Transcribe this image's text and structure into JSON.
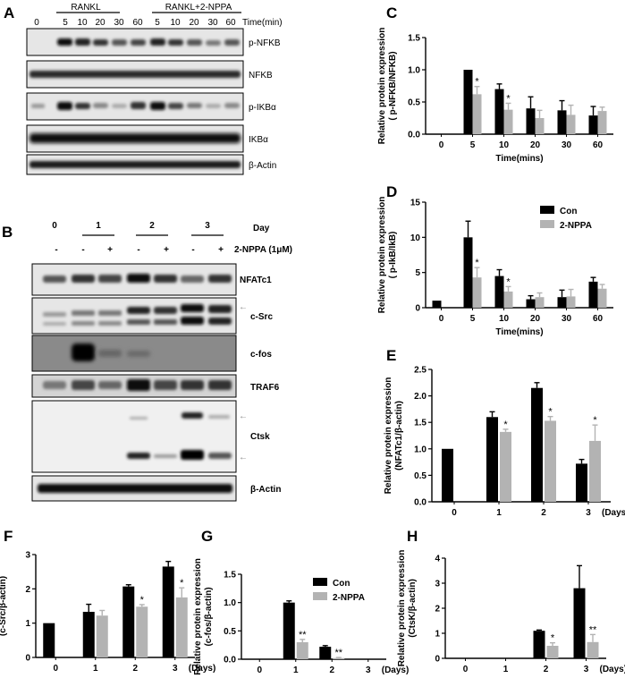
{
  "panel_letters": [
    "A",
    "B",
    "C",
    "D",
    "E",
    "F",
    "G",
    "H"
  ],
  "blot_a": {
    "groups": [
      "RANKL",
      "RANKL+2-NPPA"
    ],
    "time_labels": [
      "0",
      "5",
      "10",
      "20",
      "30",
      "60",
      "5",
      "10",
      "20",
      "30",
      "60"
    ],
    "time_unit": "Time(min)",
    "proteins": [
      "p-NFKB",
      "NFKB",
      "p-IKBα",
      "IKBα",
      "β-Actin"
    ]
  },
  "blot_b": {
    "day_label": "Day",
    "days": [
      "0",
      "1",
      "2",
      "3"
    ],
    "treatment": [
      "-",
      "-",
      "+",
      "-",
      "+",
      "-",
      "+"
    ],
    "treatment_label": "2-NPPA (1μM)",
    "proteins": [
      "NFATc1",
      "c-Src",
      "c-fos",
      "TRAF6",
      "Ctsk",
      "β-Actin"
    ]
  },
  "colors": {
    "con": "#000000",
    "npp": "#b3b3b3",
    "blot_bg": "#e8e8e8"
  },
  "chart_data": [
    {
      "id": "C",
      "type": "bar",
      "categories": [
        "0",
        "5",
        "10",
        "20",
        "30",
        "60"
      ],
      "series": [
        {
          "values": [
            0,
            1.0,
            0.7,
            0.4,
            0.37,
            0.29
          ],
          "errors": [
            0,
            0,
            0.08,
            0.18,
            0.15,
            0.14
          ]
        },
        {
          "values": [
            0,
            0.62,
            0.38,
            0.25,
            0.3,
            0.36
          ],
          "errors": [
            0,
            0.12,
            0.1,
            0.12,
            0.15,
            0.06
          ]
        }
      ],
      "sig": [
        "",
        "*",
        "*",
        "",
        "",
        ""
      ],
      "ylabel": "Relative protein expression\n( p-NFKB/NFKB)",
      "xlabel": "Time(mins)",
      "ylim": [
        0,
        1.5
      ],
      "yticks": [
        "0.0",
        "0.5",
        "1.0",
        "1.5"
      ]
    },
    {
      "id": "D",
      "type": "bar",
      "categories": [
        "0",
        "5",
        "10",
        "20",
        "30",
        "60"
      ],
      "series": [
        {
          "name": "Con",
          "values": [
            1.0,
            10.0,
            4.5,
            1.2,
            1.5,
            3.7
          ],
          "errors": [
            0,
            2.3,
            0.9,
            0.5,
            1.0,
            0.6
          ]
        },
        {
          "name": "2-NPPA",
          "values": [
            0,
            4.3,
            2.3,
            1.5,
            1.6,
            2.7
          ],
          "errors": [
            0,
            1.4,
            0.7,
            0.6,
            1.0,
            0.6
          ]
        }
      ],
      "sig": [
        "",
        "*",
        "*",
        "",
        "",
        ""
      ],
      "ylabel": "Relative protein expression\n( p-IkB/IkB)",
      "xlabel": "Time(mins)",
      "ylim": [
        0,
        15
      ],
      "yticks": [
        "0",
        "5",
        "10",
        "15"
      ],
      "legend": "top-right"
    },
    {
      "id": "E",
      "type": "bar",
      "categories": [
        "0",
        "1",
        "2",
        "3"
      ],
      "series": [
        {
          "values": [
            1.0,
            1.6,
            2.15,
            0.72
          ],
          "errors": [
            0,
            0.1,
            0.1,
            0.08
          ]
        },
        {
          "values": [
            null,
            1.32,
            1.53,
            1.15
          ],
          "errors": [
            0,
            0.05,
            0.08,
            0.3
          ]
        }
      ],
      "sig": [
        "",
        "*",
        "*",
        "*"
      ],
      "ylabel": "Relative protein expression\n(NFATc1/β-actin)",
      "xunit": "(Days)",
      "ylim": [
        0,
        2.5
      ],
      "yticks": [
        "0.0",
        "0.5",
        "1.0",
        "1.5",
        "2.0",
        "2.5"
      ]
    },
    {
      "id": "F",
      "type": "bar",
      "categories": [
        "0",
        "1",
        "2",
        "3"
      ],
      "series": [
        {
          "values": [
            1.0,
            1.33,
            2.07,
            2.65
          ],
          "errors": [
            0,
            0.22,
            0.05,
            0.15
          ]
        },
        {
          "values": [
            null,
            1.22,
            1.48,
            1.75
          ],
          "errors": [
            0,
            0.15,
            0.06,
            0.28
          ]
        }
      ],
      "sig": [
        "",
        "",
        "*",
        "*"
      ],
      "ylabel": "Relative protein expression\n(c-Src/β-actin)",
      "xunit": "(Days)",
      "ylim": [
        0,
        3
      ],
      "yticks": [
        "0",
        "1",
        "2",
        "3"
      ]
    },
    {
      "id": "G",
      "type": "bar",
      "categories": [
        "0",
        "1",
        "2",
        "3"
      ],
      "series": [
        {
          "name": "Con",
          "values": [
            0,
            1.0,
            0.22,
            0
          ],
          "errors": [
            0,
            0.03,
            0.02,
            0
          ]
        },
        {
          "name": "2-NPPA",
          "values": [
            0,
            0.3,
            0.02,
            0
          ],
          "errors": [
            0,
            0.05,
            0.01,
            0
          ]
        }
      ],
      "sig": [
        "",
        "**",
        "**",
        ""
      ],
      "ylabel": "Relative protein expression\n(c-fos/β-actin)",
      "xunit": "(Days)",
      "ylim": [
        0,
        1.5
      ],
      "yticks": [
        "0.0",
        "0.5",
        "1.0",
        "1.5"
      ],
      "legend": "top-right"
    },
    {
      "id": "H",
      "type": "bar",
      "categories": [
        "0",
        "1",
        "2",
        "3"
      ],
      "series": [
        {
          "values": [
            0,
            0,
            1.1,
            2.8
          ],
          "errors": [
            0,
            0,
            0.03,
            0.9
          ]
        },
        {
          "values": [
            0,
            0,
            0.5,
            0.65
          ],
          "errors": [
            0,
            0,
            0.12,
            0.3
          ]
        }
      ],
      "sig": [
        "",
        "",
        "*",
        "**"
      ],
      "ylabel": "Relative protein expression\n(CtsK/β-actin)",
      "xunit": "(Days)",
      "ylim": [
        0,
        4
      ],
      "yticks": [
        "0",
        "1",
        "2",
        "3",
        "4"
      ]
    }
  ]
}
